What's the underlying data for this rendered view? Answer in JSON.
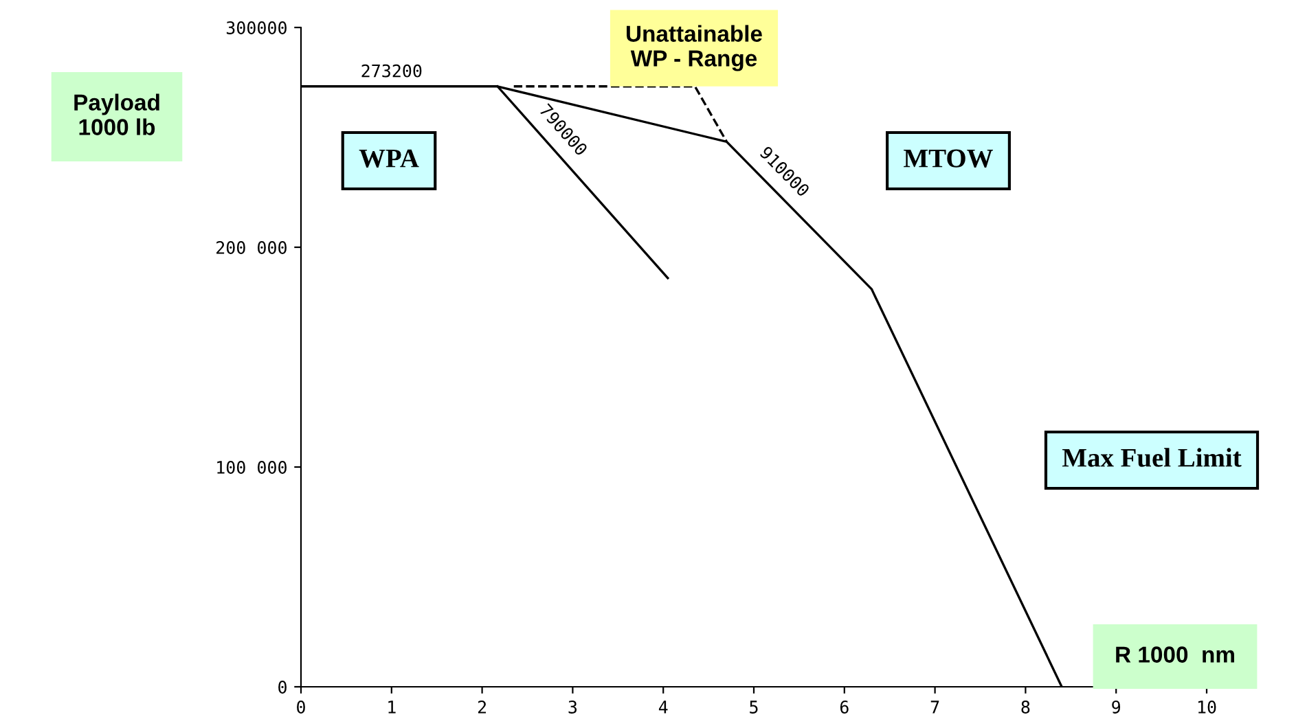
{
  "chart_data": {
    "type": "line",
    "xlabel": "R 1000  nm",
    "ylabel": "Payload\n1000 lb",
    "xlim": [
      0,
      10
    ],
    "xticks": [
      0,
      1,
      2,
      3,
      4,
      5,
      6,
      7,
      8,
      9,
      10
    ],
    "ylim": [
      0,
      300000
    ],
    "yticks": [
      0,
      {
        "value": 100000,
        "label": "100 000"
      },
      {
        "value": 200000,
        "label": "200 000"
      },
      300000
    ],
    "series": [
      {
        "name": "910000",
        "color": "#000000",
        "x": [
          0,
          2.17,
          4.7,
          6.3,
          8.4
        ],
        "values": [
          273200,
          273200,
          248000,
          181000,
          0
        ]
      },
      {
        "name": "790000",
        "color": "#000000",
        "x": [
          2.17,
          4.05
        ],
        "values": [
          273200,
          186000
        ]
      },
      {
        "color": "#000000",
        "line_style": "dashed",
        "x": [
          2.35,
          4.35,
          4.7
        ],
        "values": [
          273200,
          273200,
          248000
        ]
      }
    ],
    "annotations": [
      {
        "text": "273200",
        "x": 1,
        "y": 273200
      },
      "Unattainable\nWP - Range",
      "WPA",
      "MTOW",
      "Max Fuel Limit"
    ],
    "grid": false,
    "marker": "none",
    "line_style": "solid"
  }
}
